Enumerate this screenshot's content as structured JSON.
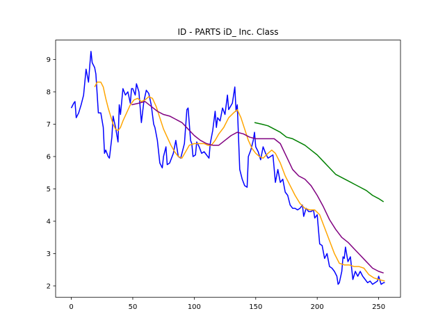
{
  "chart_data": {
    "type": "line",
    "title": "ID - PARTS iD_ Inc. Class",
    "xlim": [
      -12.75,
      267.75
    ],
    "ylim": [
      1.65,
      9.6
    ],
    "xticks": [
      0,
      50,
      100,
      150,
      200,
      250
    ],
    "yticks": [
      2,
      3,
      4,
      5,
      6,
      7,
      8,
      9
    ],
    "series": [
      {
        "color": "blue",
        "x": [
          0,
          2,
          3,
          4,
          6,
          8,
          10,
          12,
          14,
          15,
          16,
          17,
          19,
          20,
          22,
          24,
          26,
          27,
          28,
          30,
          31,
          33,
          34,
          36,
          38,
          39,
          40,
          42,
          44,
          46,
          48,
          49,
          50,
          52,
          53,
          55,
          57,
          59,
          61,
          63,
          65,
          67,
          68,
          70,
          72,
          74,
          75,
          77,
          78,
          80,
          83,
          85,
          87,
          89,
          92,
          94,
          95,
          97,
          98,
          99,
          101,
          102,
          104,
          106,
          108,
          110,
          112,
          113,
          115,
          117,
          118,
          119,
          121,
          123,
          125,
          127,
          128,
          131,
          132,
          133,
          134,
          135,
          137,
          139,
          141,
          143,
          144,
          146,
          148,
          149,
          150,
          152,
          154,
          156,
          158,
          160,
          162,
          164,
          166,
          168,
          170,
          172,
          174,
          176,
          178,
          180,
          182,
          184,
          186,
          188,
          189,
          191,
          193,
          195,
          197,
          198,
          200,
          202,
          204,
          206,
          208,
          210,
          212,
          214,
          216,
          217,
          218,
          220,
          221,
          222,
          223,
          225,
          227,
          229,
          231,
          233,
          235,
          237,
          239,
          241,
          243,
          245,
          247,
          249,
          250,
          252,
          254,
          255
        ],
        "values": [
          7.5,
          7.65,
          7.7,
          7.2,
          7.35,
          7.6,
          7.9,
          8.7,
          8.3,
          8.8,
          9.25,
          8.9,
          8.75,
          8.55,
          7.35,
          7.35,
          6.9,
          6.1,
          6.2,
          6.0,
          5.95,
          6.6,
          7.25,
          6.9,
          6.45,
          7.6,
          7.3,
          8.1,
          7.9,
          8.0,
          7.65,
          8.1,
          8.1,
          7.9,
          8.25,
          8.0,
          7.05,
          7.7,
          8.05,
          7.95,
          7.6,
          7.0,
          6.9,
          6.5,
          5.8,
          5.65,
          6.0,
          6.3,
          5.75,
          5.8,
          6.1,
          6.5,
          6.0,
          5.95,
          6.4,
          7.45,
          7.5,
          6.5,
          6.4,
          6.0,
          6.05,
          6.45,
          6.3,
          6.1,
          6.15,
          6.05,
          5.95,
          6.4,
          6.8,
          7.4,
          6.9,
          7.2,
          7.1,
          7.5,
          7.3,
          7.9,
          7.45,
          7.65,
          7.9,
          8.15,
          7.4,
          7.6,
          5.6,
          5.3,
          5.1,
          5.05,
          6.0,
          6.2,
          6.5,
          6.75,
          6.3,
          6.15,
          5.9,
          6.3,
          6.1,
          5.95,
          6.0,
          6.05,
          5.2,
          5.6,
          5.2,
          5.3,
          4.9,
          4.8,
          4.5,
          4.4,
          4.4,
          4.35,
          4.4,
          4.5,
          4.15,
          4.4,
          4.3,
          4.3,
          4.35,
          4.1,
          4.2,
          3.3,
          3.25,
          2.85,
          3.0,
          2.6,
          2.55,
          2.45,
          2.3,
          2.05,
          2.1,
          2.45,
          2.9,
          2.85,
          3.2,
          2.75,
          2.9,
          2.2,
          2.45,
          2.3,
          2.45,
          2.3,
          2.2,
          2.1,
          2.15,
          2.05,
          2.1,
          2.15,
          2.3,
          2.05,
          2.1,
          2.1
        ]
      },
      {
        "color": "orange",
        "x": [
          19,
          21,
          24,
          26,
          28,
          30,
          32,
          34,
          36,
          38,
          40,
          42,
          45,
          48,
          51,
          54,
          57,
          60,
          63,
          66,
          69,
          72,
          75,
          78,
          81,
          84,
          87,
          90,
          93,
          96,
          100,
          104,
          108,
          111,
          114,
          117,
          120,
          124,
          128,
          132,
          135,
          138,
          141,
          144,
          147,
          150,
          153,
          156,
          160,
          163,
          166,
          170,
          174,
          178,
          182,
          186,
          190,
          194,
          198,
          202,
          206,
          210,
          214,
          218,
          222,
          226,
          230,
          234,
          238,
          242,
          246,
          250,
          255
        ],
        "values": [
          8.15,
          8.3,
          8.3,
          8.15,
          7.8,
          7.5,
          7.25,
          7.0,
          6.85,
          6.8,
          6.9,
          7.1,
          7.35,
          7.6,
          7.75,
          7.8,
          7.7,
          7.75,
          7.85,
          7.8,
          7.55,
          7.2,
          6.85,
          6.6,
          6.35,
          6.15,
          6.0,
          5.95,
          6.15,
          6.35,
          6.4,
          6.4,
          6.4,
          6.35,
          6.35,
          6.5,
          6.7,
          6.9,
          7.2,
          7.35,
          7.45,
          7.2,
          6.85,
          6.5,
          6.25,
          6.1,
          6.0,
          5.95,
          6.1,
          6.2,
          6.1,
          5.8,
          5.4,
          5.1,
          4.8,
          4.55,
          4.4,
          4.35,
          4.35,
          4.2,
          3.8,
          3.4,
          3.0,
          2.7,
          2.65,
          2.65,
          2.6,
          2.6,
          2.55,
          2.35,
          2.25,
          2.2,
          2.15
        ]
      },
      {
        "color": "purple",
        "x": [
          49,
          55,
          60,
          65,
          70,
          75,
          80,
          85,
          90,
          95,
          100,
          105,
          110,
          115,
          120,
          125,
          130,
          135,
          140,
          145,
          150,
          155,
          160,
          165,
          170,
          175,
          180,
          185,
          190,
          195,
          200,
          205,
          210,
          215,
          220,
          225,
          230,
          235,
          240,
          245,
          250,
          254
        ],
        "values": [
          7.6,
          7.65,
          7.7,
          7.55,
          7.4,
          7.3,
          7.25,
          7.15,
          7.05,
          6.85,
          6.65,
          6.5,
          6.4,
          6.35,
          6.35,
          6.5,
          6.65,
          6.75,
          6.7,
          6.6,
          6.55,
          6.55,
          6.55,
          6.55,
          6.4,
          6.0,
          5.6,
          5.4,
          5.3,
          5.1,
          4.8,
          4.45,
          4.05,
          3.75,
          3.5,
          3.35,
          3.15,
          2.95,
          2.75,
          2.55,
          2.45,
          2.4
        ]
      },
      {
        "color": "green",
        "x": [
          149,
          155,
          160,
          165,
          170,
          175,
          180,
          185,
          190,
          195,
          200,
          205,
          210,
          215,
          220,
          225,
          230,
          235,
          240,
          245,
          250,
          254
        ],
        "values": [
          7.05,
          7.0,
          6.95,
          6.85,
          6.75,
          6.6,
          6.55,
          6.45,
          6.35,
          6.2,
          6.05,
          5.85,
          5.65,
          5.45,
          5.35,
          5.25,
          5.15,
          5.05,
          4.95,
          4.8,
          4.7,
          4.6
        ]
      }
    ]
  }
}
